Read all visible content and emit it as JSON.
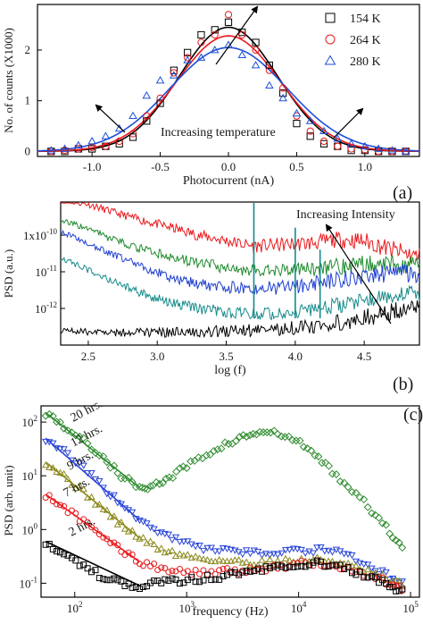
{
  "chart_data": [
    {
      "panel": "(a)",
      "type": "scatter",
      "xlabel": "Photocurrent (nA)",
      "ylabel": "No. of counts (X1000)",
      "xlim": [
        -1.4,
        1.4
      ],
      "ylim": [
        -0.1,
        2.9
      ],
      "xticks": [
        -1.0,
        -0.5,
        0.0,
        0.5,
        1.0
      ],
      "xtick_labels": [
        "-1.0",
        "-0.5",
        "0.0",
        "0.5",
        "1.0"
      ],
      "yticks": [
        0,
        1,
        2
      ],
      "ytick_labels": [
        "0",
        "1",
        "2"
      ],
      "legend_position": "top-right",
      "annotation": "Increasing temperature",
      "series": [
        {
          "name": "154 K",
          "marker": "square",
          "color": "#000000",
          "fit": {
            "amplitude": 2.45,
            "sigma": 0.36
          },
          "x": [
            -1.3,
            -1.2,
            -1.1,
            -1.0,
            -0.9,
            -0.8,
            -0.7,
            -0.6,
            -0.5,
            -0.4,
            -0.3,
            -0.2,
            -0.1,
            0.0,
            0.1,
            0.2,
            0.3,
            0.4,
            0.5,
            0.6,
            0.7,
            0.8,
            0.9,
            1.0,
            1.1,
            1.2,
            1.3
          ],
          "y": [
            0.0,
            0.0,
            0.05,
            0.05,
            0.1,
            0.15,
            0.28,
            0.6,
            0.95,
            1.6,
            1.95,
            2.3,
            2.4,
            2.55,
            2.35,
            2.15,
            1.7,
            1.15,
            0.55,
            0.3,
            0.15,
            0.1,
            0.02,
            0.02,
            0.0,
            0.0,
            0.0
          ]
        },
        {
          "name": "264 K",
          "marker": "circle",
          "color": "#e8191c",
          "fit": {
            "amplitude": 2.28,
            "sigma": 0.38
          },
          "x": [
            -1.3,
            -1.2,
            -1.1,
            -1.0,
            -0.9,
            -0.8,
            -0.7,
            -0.6,
            -0.5,
            -0.4,
            -0.3,
            -0.2,
            -0.1,
            0.0,
            0.1,
            0.2,
            0.3,
            0.4,
            0.5,
            0.6,
            0.7,
            0.8,
            0.9,
            1.0,
            1.1,
            1.2,
            1.3
          ],
          "y": [
            0.0,
            0.02,
            0.05,
            0.08,
            0.1,
            0.2,
            0.35,
            0.7,
            1.05,
            1.55,
            1.85,
            2.15,
            2.3,
            2.7,
            2.3,
            2.0,
            1.6,
            1.25,
            0.7,
            0.4,
            0.2,
            0.1,
            0.05,
            0.03,
            0.0,
            0.0,
            0.0
          ]
        },
        {
          "name": "280 K",
          "marker": "triangle",
          "color": "#1f4fd9",
          "fit": {
            "amplitude": 2.05,
            "sigma": 0.43
          },
          "x": [
            -1.3,
            -1.2,
            -1.1,
            -1.0,
            -0.9,
            -0.8,
            -0.7,
            -0.6,
            -0.5,
            -0.4,
            -0.3,
            -0.2,
            -0.1,
            0.0,
            0.1,
            0.2,
            0.3,
            0.4,
            0.5,
            0.6,
            0.7,
            0.8,
            0.9,
            1.0,
            1.1,
            1.2,
            1.3
          ],
          "y": [
            0.02,
            0.05,
            0.12,
            0.2,
            0.3,
            0.45,
            0.7,
            1.1,
            1.4,
            1.5,
            1.8,
            1.85,
            2.0,
            2.1,
            1.9,
            1.7,
            1.3,
            1.05,
            0.75,
            0.6,
            0.4,
            0.25,
            0.15,
            0.1,
            0.05,
            0.02,
            0.0
          ]
        }
      ]
    },
    {
      "panel": "(b)",
      "type": "line",
      "xlabel": "log (f)",
      "ylabel": "PSD (a.u.)",
      "xlim": [
        2.3,
        4.9
      ],
      "ylog": true,
      "ylim": [
        1e-13,
        8e-10
      ],
      "xticks": [
        2.5,
        3.0,
        3.5,
        4.0,
        4.5
      ],
      "xtick_labels": [
        "2.5",
        "3.0",
        "3.5",
        "4.0",
        "4.5"
      ],
      "ytick_labels": [
        "10",
        "10",
        "1x10"
      ],
      "ytick_exponents": [
        "-12",
        "-11",
        "-10"
      ],
      "annotation": "Increasing Intensity",
      "series": [
        {
          "color": "#e8191c",
          "x": [
            2.3,
            2.5,
            2.7,
            2.9,
            3.1,
            3.3,
            3.5,
            3.7,
            3.9,
            4.1,
            4.3,
            4.5,
            4.7,
            4.9
          ],
          "y": [
            9e-10,
            7e-10,
            4e-10,
            2.5e-10,
            1.6e-10,
            1e-10,
            7e-11,
            5e-11,
            5.5e-11,
            6e-11,
            7.5e-11,
            7e-11,
            4e-11,
            2.5e-11
          ]
        },
        {
          "color": "#1e8a2c",
          "x": [
            2.3,
            2.5,
            2.7,
            2.9,
            3.1,
            3.3,
            3.5,
            3.7,
            3.9,
            4.1,
            4.3,
            4.5,
            4.7,
            4.9
          ],
          "y": [
            2.5e-10,
            1.5e-10,
            7e-11,
            4e-11,
            2.5e-11,
            1.7e-11,
            1.3e-11,
            1.1e-11,
            1.1e-11,
            1.2e-11,
            1.4e-11,
            1.6e-11,
            1.6e-11,
            1.4e-11
          ]
        },
        {
          "color": "#1f3fd0",
          "x": [
            2.3,
            2.5,
            2.7,
            2.9,
            3.1,
            3.3,
            3.5,
            3.7,
            3.9,
            4.1,
            4.3,
            4.5,
            4.7,
            4.9
          ],
          "y": [
            1.2e-10,
            6e-11,
            2.7e-11,
            1.3e-11,
            7e-12,
            4.5e-12,
            3.8e-12,
            3.5e-12,
            3.7e-12,
            4.5e-12,
            6e-12,
            8e-12,
            9e-12,
            9e-12
          ]
        },
        {
          "color": "#168a8a",
          "x": [
            2.3,
            2.5,
            2.7,
            2.9,
            3.1,
            3.3,
            3.5,
            3.7,
            3.9,
            4.1,
            4.3,
            4.5,
            4.7,
            4.9
          ],
          "y": [
            2.5e-11,
            1.1e-11,
            5e-12,
            2.5e-12,
            1.4e-12,
            1e-12,
            8e-13,
            7e-13,
            8e-13,
            9e-13,
            1.2e-12,
            1.8e-12,
            2.5e-12,
            2.8e-12
          ]
        },
        {
          "color": "#000000",
          "x": [
            2.3,
            2.5,
            2.7,
            2.9,
            3.1,
            3.3,
            3.5,
            3.7,
            3.9,
            4.1,
            4.3,
            4.5,
            4.7,
            4.9
          ],
          "y": [
            2.5e-13,
            2.3e-13,
            2.2e-13,
            2.2e-13,
            2.2e-13,
            2.3e-13,
            2.4e-13,
            2.6e-13,
            2.8e-13,
            3.2e-13,
            4e-13,
            5.5e-13,
            8e-13,
            1e-12
          ]
        }
      ],
      "spikes": [
        {
          "x": 3.7,
          "top": 1.2e-09,
          "color": "#168a8a"
        },
        {
          "x": 4.0,
          "top": 1.6e-10,
          "color": "#168a8a"
        },
        {
          "x": 4.18,
          "top": 4e-11,
          "color": "#168a8a"
        }
      ]
    },
    {
      "panel": "(c)",
      "type": "scatter",
      "xlabel": "frequency (Hz)",
      "ylabel": "PSD (arb. unit)",
      "xlog": true,
      "ylog": true,
      "xlim": [
        50,
        120000
      ],
      "ylim": [
        0.055,
        200
      ],
      "xtick_labels": [
        "10",
        "10",
        "10",
        "10"
      ],
      "xtick_exponents": [
        "2",
        "3",
        "4",
        "5"
      ],
      "ytick_labels": [
        "10",
        "10",
        "10",
        "10"
      ],
      "ytick_exponents": [
        "-1",
        "0",
        "1",
        "2"
      ],
      "series": [
        {
          "name": "20 hrs.",
          "marker": "diamond",
          "color": "#2e8b2e",
          "x": [
            55,
            80,
            120,
            180,
            260,
            380,
            500,
            700,
            1000,
            1500,
            2200,
            3200,
            4500,
            6500,
            9500,
            14000,
            20000,
            30000,
            45000,
            65000,
            90000
          ],
          "y": [
            150,
            85,
            45,
            22,
            10,
            6,
            6.5,
            9,
            15,
            25,
            38,
            52,
            65,
            60,
            45,
            25,
            12,
            5.5,
            2.2,
            0.9,
            0.45
          ]
        },
        {
          "name": "12 hrs.",
          "marker": "triangle-down",
          "color": "#2a45d8",
          "x": [
            55,
            80,
            120,
            180,
            260,
            380,
            550,
            800,
            1200,
            1800,
            2700,
            4000,
            6000,
            9000,
            13500,
            20000,
            30000,
            45000,
            65000,
            90000
          ],
          "y": [
            50,
            28,
            14,
            6,
            3,
            1.5,
            0.9,
            0.65,
            0.5,
            0.42,
            0.38,
            0.36,
            0.38,
            0.4,
            0.42,
            0.4,
            0.3,
            0.2,
            0.13,
            0.1
          ]
        },
        {
          "name": "9 hrs.",
          "marker": "triangle",
          "color": "#8c8a1e",
          "x": [
            55,
            80,
            120,
            180,
            260,
            380,
            550,
            800,
            1200,
            1800,
            2700,
            4000,
            6000,
            9000,
            13500,
            20000,
            30000,
            45000,
            65000,
            90000
          ],
          "y": [
            18,
            10,
            5,
            2.4,
            1.2,
            0.7,
            0.45,
            0.35,
            0.3,
            0.27,
            0.25,
            0.24,
            0.25,
            0.26,
            0.27,
            0.26,
            0.2,
            0.15,
            0.11,
            0.09
          ]
        },
        {
          "name": "7 hrs.",
          "marker": "circle",
          "color": "#e8191c",
          "x": [
            55,
            80,
            120,
            180,
            260,
            380,
            550,
            800,
            1200,
            1800,
            2700,
            4000,
            6000,
            9000,
            13500,
            20000,
            30000,
            45000,
            65000,
            90000
          ],
          "y": [
            4.5,
            2.6,
            1.4,
            0.75,
            0.4,
            0.25,
            0.2,
            0.17,
            0.16,
            0.16,
            0.17,
            0.18,
            0.2,
            0.22,
            0.24,
            0.22,
            0.17,
            0.13,
            0.1,
            0.08
          ]
        },
        {
          "name": "2 hrs.",
          "marker": "square",
          "color": "#000000",
          "x": [
            55,
            80,
            120,
            180,
            260,
            380,
            550,
            800,
            1200,
            1800,
            2700,
            4000,
            6000,
            9000,
            13500,
            20000,
            30000,
            45000,
            65000,
            90000
          ],
          "y": [
            0.6,
            0.35,
            0.2,
            0.13,
            0.1,
            0.09,
            0.1,
            0.11,
            0.12,
            0.13,
            0.15,
            0.17,
            0.2,
            0.22,
            0.24,
            0.22,
            0.17,
            0.12,
            0.09,
            0.07
          ]
        }
      ]
    }
  ]
}
